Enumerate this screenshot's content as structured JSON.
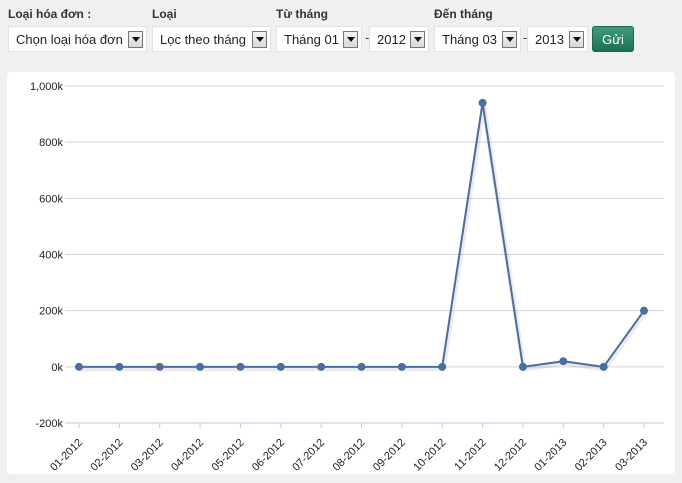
{
  "filters": {
    "invoice_type": {
      "label": "Loại hóa đơn :",
      "value": "Chọn loại hóa đơn"
    },
    "type": {
      "label": "Loại",
      "value": "Lọc theo tháng"
    },
    "from": {
      "label": "Từ tháng",
      "month": "Tháng 01",
      "year": "2012"
    },
    "to": {
      "label": "Đến tháng",
      "month": "Tháng 03",
      "year": "2013"
    },
    "separator": "-",
    "submit_label": "Gửi"
  },
  "colors": {
    "line": "#4a6f9f",
    "submit": "#2a8063"
  },
  "chart_data": {
    "type": "line",
    "categories": [
      "01-2012",
      "02-2012",
      "03-2012",
      "04-2012",
      "05-2012",
      "06-2012",
      "07-2012",
      "08-2012",
      "09-2012",
      "10-2012",
      "11-2012",
      "12-2012",
      "01-2013",
      "02-2013",
      "03-2013"
    ],
    "series": [
      {
        "values": [
          0,
          0,
          0,
          0,
          0,
          0,
          0,
          0,
          0,
          0,
          940000,
          0,
          20000,
          0,
          200000
        ]
      }
    ],
    "yticks": [
      -200000,
      0,
      200000,
      400000,
      600000,
      800000,
      1000000
    ],
    "ytick_labels": [
      "-200k",
      "0k",
      "200k",
      "400k",
      "600k",
      "800k",
      "1,000k"
    ],
    "ylim": [
      -200000,
      1000000
    ],
    "grid": true,
    "legend": "none"
  }
}
